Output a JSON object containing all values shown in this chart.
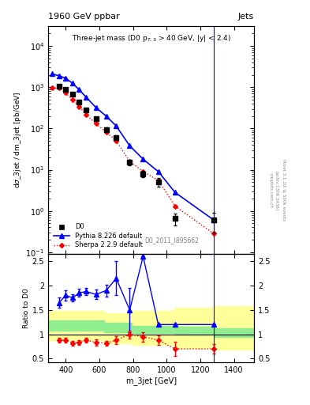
{
  "title_main": "1960 GeV ppbar",
  "title_right": "Jets",
  "subtitle": "Three-jet mass (D0 p$_{T,3}$ > 40 GeV, |y| < 2.4)",
  "watermark": "D0_2011_I895662",
  "ylabel_main": "dσ_3jet / dm_3jet [pb/GeV]",
  "ylabel_ratio": "Ratio to D0",
  "xlabel": "m_3jet [GeV]",
  "right_label": "Rivet 3.1.10, ≥ 500k events",
  "arxiv_label": "[arXiv:1306.3436]",
  "mcplots_label": "mcplots.cern.ch",
  "d0_x": [
    360,
    400,
    440,
    480,
    520,
    580,
    640,
    700,
    780,
    860,
    950,
    1050,
    1280
  ],
  "d0_y": [
    1050,
    900,
    680,
    430,
    280,
    170,
    95,
    60,
    15,
    8,
    5,
    0.65,
    0.6
  ],
  "d0_yerr_lo": [
    80,
    70,
    55,
    40,
    25,
    15,
    10,
    7,
    2.5,
    1.5,
    1.2,
    0.2,
    0.3
  ],
  "d0_yerr_hi": [
    80,
    70,
    55,
    40,
    25,
    15,
    10,
    7,
    2.5,
    1.5,
    1.2,
    0.2,
    0.3
  ],
  "pythia_x": [
    320,
    360,
    400,
    440,
    480,
    520,
    580,
    640,
    700,
    780,
    860,
    950,
    1050,
    1280
  ],
  "pythia_y": [
    2100,
    1900,
    1650,
    1250,
    870,
    580,
    320,
    200,
    115,
    38,
    18,
    9,
    2.8,
    0.6
  ],
  "sherpa_x": [
    320,
    360,
    400,
    440,
    480,
    520,
    580,
    640,
    700,
    780,
    860,
    950,
    1050,
    1280
  ],
  "sherpa_y": [
    950,
    950,
    730,
    490,
    340,
    220,
    130,
    82,
    50,
    16,
    9,
    5.5,
    1.3,
    0.28
  ],
  "ratio_pythia_x": [
    360,
    400,
    440,
    480,
    520,
    580,
    640,
    700,
    780,
    860,
    950,
    1050,
    1280
  ],
  "ratio_pythia_y": [
    1.65,
    1.8,
    1.75,
    1.85,
    1.88,
    1.82,
    1.9,
    2.15,
    1.5,
    2.6,
    1.2,
    1.2,
    1.2
  ],
  "ratio_pythia_yerr_lo": [
    0.1,
    0.1,
    0.08,
    0.08,
    0.08,
    0.1,
    0.12,
    0.35,
    0.45,
    0.0,
    0.0,
    0.0,
    0.0
  ],
  "ratio_pythia_yerr_hi": [
    0.1,
    0.1,
    0.08,
    0.08,
    0.08,
    0.1,
    0.12,
    0.35,
    0.45,
    0.0,
    0.0,
    0.0,
    0.0
  ],
  "ratio_sherpa_x": [
    360,
    400,
    440,
    480,
    520,
    580,
    640,
    700,
    780,
    860,
    950,
    1050,
    1280
  ],
  "ratio_sherpa_y": [
    0.88,
    0.88,
    0.82,
    0.83,
    0.88,
    0.83,
    0.82,
    0.88,
    1.0,
    0.95,
    0.88,
    0.7,
    0.7
  ],
  "ratio_sherpa_yerr": [
    0.05,
    0.05,
    0.05,
    0.05,
    0.05,
    0.06,
    0.05,
    0.08,
    0.08,
    0.1,
    0.1,
    0.15,
    0.1
  ],
  "band_edges": [
    300,
    460,
    630,
    790,
    1050,
    1280,
    1520
  ],
  "band_green_lo": [
    1.08,
    1.08,
    1.05,
    1.02,
    1.0,
    0.95,
    0.95
  ],
  "band_green_hi": [
    1.28,
    1.28,
    1.23,
    1.18,
    1.15,
    1.12,
    1.12
  ],
  "band_yellow_lo": [
    0.88,
    0.88,
    0.82,
    0.78,
    0.72,
    0.68,
    0.62
  ],
  "band_yellow_hi": [
    1.48,
    1.48,
    1.43,
    1.48,
    1.55,
    1.58,
    1.62
  ],
  "color_d0": "#000000",
  "color_pythia": "#0000ff",
  "color_sherpa": "#ff0000",
  "color_green": "#90ee90",
  "color_yellow": "#ffff99",
  "ylim_main": [
    0.09,
    30000
  ],
  "ylim_ratio": [
    0.42,
    2.65
  ],
  "xlim": [
    295,
    1520
  ]
}
